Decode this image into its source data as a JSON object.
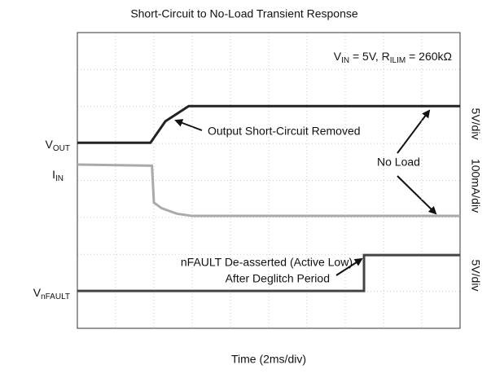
{
  "chart_data": {
    "type": "line",
    "title": "Short-Circuit to No-Load Transient Response",
    "x_label": "Time (2ms/div)",
    "condition": [
      {
        "text": "V"
      },
      {
        "text": "IN",
        "sub": true
      },
      {
        "text": " = 5V, R"
      },
      {
        "text": "ILIM",
        "sub": true
      },
      {
        "text": " = 260kΩ"
      }
    ],
    "channel_scales": [
      "5V/div",
      "100mA/div",
      "5V/div"
    ],
    "annotations": [
      "Output Short-Circuit Removed",
      "No Load",
      "nFAULT De-asserted (Active Low)",
      "After Deglitch Period"
    ],
    "xlim": [
      0,
      10
    ],
    "ylim": [
      0,
      8
    ],
    "xticks": [
      0,
      1,
      2,
      3,
      4,
      5,
      6,
      7,
      8,
      9,
      10
    ],
    "yticks": [
      0,
      1,
      2,
      3,
      4,
      5,
      6,
      7,
      8
    ],
    "grid": true,
    "series": [
      {
        "name": [
          {
            "text": "V"
          },
          {
            "text": "OUT",
            "sub": true
          }
        ],
        "color": "#222222",
        "x": [
          0,
          1.91,
          2.3,
          2.91,
          10
        ],
        "values": [
          5.02,
          5.02,
          5.6,
          6.01,
          6.01
        ]
      },
      {
        "name": [
          {
            "text": "I"
          },
          {
            "text": "IN",
            "sub": true
          }
        ],
        "color": "#aaaaaa",
        "x": [
          0,
          1.95,
          2.0,
          2.2,
          2.6,
          3.0,
          10
        ],
        "values": [
          4.43,
          4.4,
          3.4,
          3.25,
          3.1,
          3.04,
          3.04
        ]
      },
      {
        "name": [
          {
            "text": "V"
          },
          {
            "text": "nFAULT",
            "sub": true
          }
        ],
        "color": "#444444",
        "x": [
          0,
          7.49,
          7.49,
          10
        ],
        "values": [
          1.01,
          1.01,
          1.98,
          1.98
        ]
      }
    ]
  }
}
